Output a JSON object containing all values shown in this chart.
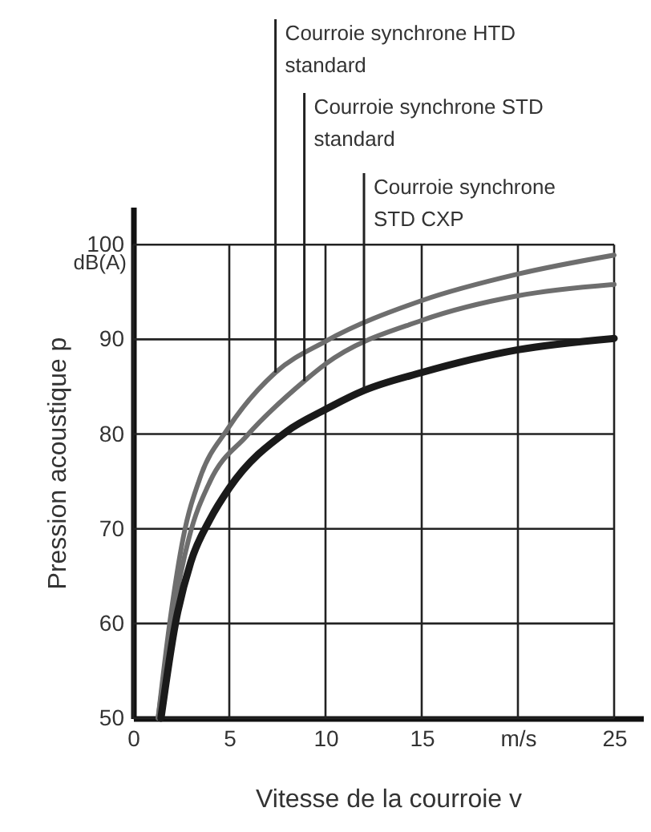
{
  "chart_data": {
    "type": "line",
    "xlabel": "Vitesse de la courroie v",
    "ylabel": "Pression acoustique p",
    "xlim": [
      0,
      26.5
    ],
    "ylim": [
      50,
      104
    ],
    "xticks": [
      0,
      5,
      10,
      15,
      {
        "value": 20,
        "label": "m/s"
      },
      25
    ],
    "yticks": [
      50,
      60,
      70,
      80,
      90,
      100
    ],
    "grid": true,
    "marker": "none",
    "line_style": "solid",
    "series": [
      {
        "color": "#6e6e6e",
        "x": [
          1.3,
          1.9,
          2.6,
          3.5,
          4.9,
          7.4,
          10,
          15,
          20,
          25
        ],
        "values": [
          50,
          60,
          69,
          75.5,
          80.5,
          86.5,
          89.8,
          94.1,
          96.9,
          98.9
        ]
      },
      {
        "color": "#6e6e6e",
        "x": [
          1.3,
          2,
          2.9,
          4,
          5.9,
          8.9,
          10,
          15,
          20,
          25
        ],
        "values": [
          50,
          60,
          69,
          75,
          79.8,
          85.6,
          87.4,
          92,
          94.6,
          95.8
        ]
      },
      {
        "color": "#1a1a1a",
        "x": [
          1.45,
          2.2,
          3,
          4,
          5,
          8,
          10,
          12,
          15,
          20,
          25
        ],
        "values": [
          50,
          60,
          66.5,
          71,
          74.3,
          80.3,
          82.6,
          84.6,
          86.5,
          88.9,
          90.1
        ]
      }
    ],
    "annotations": [
      {
        "text": "Courroie synchrone HTD\nstandard",
        "x": 7.4,
        "y": 86.5
      },
      {
        "text": "Courroie synchrone STD\nstandard",
        "x": 8.9,
        "y": 85.6
      },
      {
        "text": "Courroie synchrone\nSTD CXP",
        "x": 12,
        "y": 84.8
      },
      "dB(A)"
    ]
  }
}
